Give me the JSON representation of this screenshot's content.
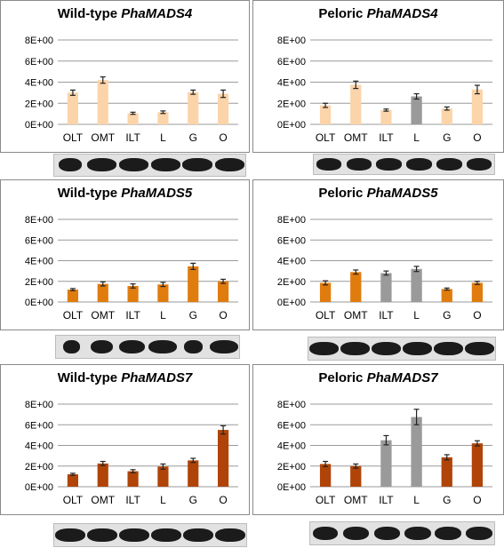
{
  "chart_data": [
    {
      "type": "bar",
      "title_prefix": "Wild-type ",
      "title_gene": "PhaMADS4",
      "categories": [
        "OLT",
        "OMT",
        "ILT",
        "L",
        "G",
        "O"
      ],
      "values": [
        3.0,
        4.2,
        1.05,
        1.15,
        3.05,
        2.9
      ],
      "errors": [
        0.25,
        0.3,
        0.1,
        0.12,
        0.2,
        0.35
      ],
      "colors": [
        "#fcd4aa",
        "#fcd4aa",
        "#fcd4aa",
        "#fcd4aa",
        "#fcd4aa",
        "#fcd4aa"
      ],
      "yticks": [
        "0E+00",
        "2E+00",
        "4E+00",
        "6E+00",
        "8E+00"
      ],
      "ylim": [
        0,
        8
      ],
      "grid": true,
      "band_widths": [
        0.72,
        0.92,
        0.92,
        0.92,
        0.95,
        0.92
      ]
    },
    {
      "type": "bar",
      "title_prefix": "Peloric ",
      "title_gene": "PhaMADS4",
      "categories": [
        "OLT",
        "OMT",
        "ILT",
        "L",
        "G",
        "O"
      ],
      "values": [
        1.8,
        3.75,
        1.35,
        2.65,
        1.5,
        3.3
      ],
      "errors": [
        0.2,
        0.35,
        0.1,
        0.25,
        0.15,
        0.4
      ],
      "colors": [
        "#fcd4aa",
        "#fcd4aa",
        "#fcd4aa",
        "#9a9a9a",
        "#fcd4aa",
        "#fcd4aa"
      ],
      "yticks": [
        "0E+00",
        "2E+00",
        "4E+00",
        "6E+00",
        "8E+00"
      ],
      "ylim": [
        0,
        8
      ],
      "grid": true,
      "band_widths": [
        0.82,
        0.82,
        0.85,
        0.85,
        0.85,
        0.85
      ]
    },
    {
      "type": "bar",
      "title_prefix": "Wild-type ",
      "title_gene": "PhaMADS5",
      "categories": [
        "OLT",
        "OMT",
        "ILT",
        "L",
        "G",
        "O"
      ],
      "values": [
        1.2,
        1.75,
        1.55,
        1.7,
        3.45,
        2.0
      ],
      "errors": [
        0.1,
        0.2,
        0.2,
        0.2,
        0.3,
        0.2
      ],
      "colors": [
        "#e07c0e",
        "#e07c0e",
        "#e07c0e",
        "#e07c0e",
        "#e07c0e",
        "#e07c0e"
      ],
      "yticks": [
        "0E+00",
        "2E+00",
        "4E+00",
        "6E+00",
        "8E+00"
      ],
      "ylim": [
        0,
        8
      ],
      "grid": true,
      "band_widths": [
        0.55,
        0.75,
        0.85,
        0.92,
        0.6,
        0.92
      ]
    },
    {
      "type": "bar",
      "title_prefix": "Peloric ",
      "title_gene": "PhaMADS5",
      "categories": [
        "OLT",
        "OMT",
        "ILT",
        "L",
        "G",
        "O"
      ],
      "values": [
        1.85,
        2.9,
        2.8,
        3.2,
        1.25,
        1.85
      ],
      "errors": [
        0.2,
        0.2,
        0.2,
        0.25,
        0.1,
        0.15
      ],
      "colors": [
        "#e07c0e",
        "#e07c0e",
        "#9a9a9a",
        "#9a9a9a",
        "#e07c0e",
        "#e07c0e"
      ],
      "yticks": [
        "0E+00",
        "2E+00",
        "4E+00",
        "6E+00",
        "8E+00"
      ],
      "ylim": [
        0,
        8
      ],
      "grid": true,
      "band_widths": [
        0.92,
        0.92,
        0.95,
        0.92,
        0.92,
        0.92
      ]
    },
    {
      "type": "bar",
      "title_prefix": "Wild-type ",
      "title_gene": "PhaMADS7",
      "categories": [
        "OLT",
        "OMT",
        "ILT",
        "L",
        "G",
        "O"
      ],
      "values": [
        1.2,
        2.25,
        1.5,
        1.95,
        2.55,
        5.5
      ],
      "errors": [
        0.1,
        0.2,
        0.15,
        0.25,
        0.2,
        0.4
      ],
      "colors": [
        "#b04408",
        "#b04408",
        "#b04408",
        "#b04408",
        "#b04408",
        "#b04408"
      ],
      "yticks": [
        "0E+00",
        "2E+00",
        "4E+00",
        "6E+00",
        "8E+00"
      ],
      "ylim": [
        0,
        8
      ],
      "grid": true,
      "band_widths": [
        0.92,
        0.92,
        0.92,
        0.92,
        0.92,
        0.92
      ]
    },
    {
      "type": "bar",
      "title_prefix": "Peloric ",
      "title_gene": "PhaMADS7",
      "categories": [
        "OLT",
        "OMT",
        "ILT",
        "L",
        "G",
        "O"
      ],
      "values": [
        2.2,
        2.0,
        4.5,
        6.75,
        2.85,
        4.2
      ],
      "errors": [
        0.25,
        0.2,
        0.45,
        0.75,
        0.25,
        0.25
      ],
      "colors": [
        "#b04408",
        "#b04408",
        "#9a9a9a",
        "#9a9a9a",
        "#b04408",
        "#b04408"
      ],
      "yticks": [
        "0E+00",
        "2E+00",
        "4E+00",
        "6E+00",
        "8E+00"
      ],
      "ylim": [
        0,
        8
      ],
      "grid": true,
      "band_widths": [
        0.82,
        0.85,
        0.85,
        0.88,
        0.88,
        0.88
      ]
    }
  ]
}
